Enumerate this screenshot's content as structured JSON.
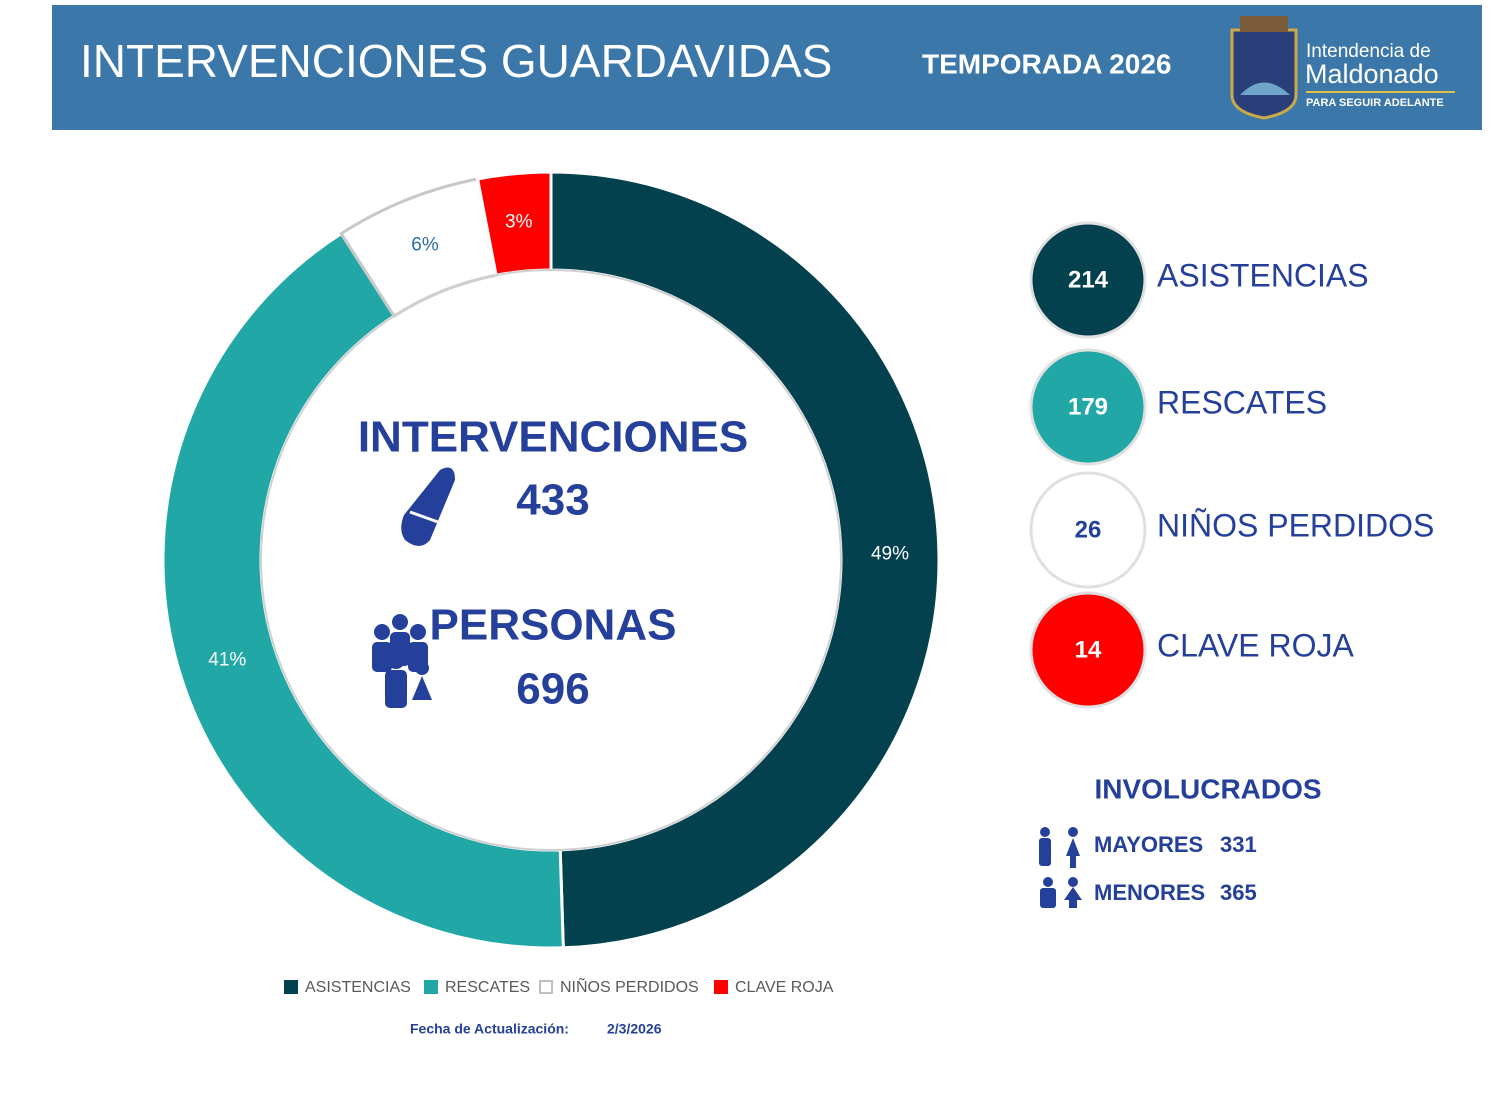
{
  "header": {
    "title": "INTERVENCIONES GUARDAVIDAS",
    "season": "TEMPORADA 2026",
    "logo": {
      "line1": "Intendencia de",
      "line2": "Maldonado",
      "tagline": "PARA SEGUIR ADELANTE"
    }
  },
  "chart_data": {
    "type": "pie",
    "donut": true,
    "categories": [
      "ASISTENCIAS",
      "RESCATES",
      "NIÑOS PERDIDOS",
      "CLAVE ROJA"
    ],
    "values": [
      49,
      41,
      6,
      3
    ],
    "value_labels": [
      "49%",
      "41%",
      "6%",
      "3%"
    ],
    "colors": [
      "#03414f",
      "#21a8a6",
      "#ffffff",
      "#ff0000"
    ],
    "label_colors": [
      "#ffffff",
      "#ffffff",
      "#2e6da4",
      "#ffffff"
    ],
    "legend": "bottom"
  },
  "center": {
    "interventions": {
      "label": "INTERVENCIONES",
      "value": 433
    },
    "people": {
      "label": "PERSONAS",
      "value": 696
    }
  },
  "summary": [
    {
      "count": 214,
      "label": "ASISTENCIAS",
      "color": "#03414f",
      "text_color": "#ffffff"
    },
    {
      "count": 179,
      "label": "RESCATES",
      "color": "#21a8a6",
      "text_color": "#ffffff"
    },
    {
      "count": 26,
      "label": "NIÑOS PERDIDOS",
      "color": "#ffffff",
      "text_color": "#25409a"
    },
    {
      "count": 14,
      "label": "CLAVE ROJA",
      "color": "#ff0000",
      "text_color": "#ffffff"
    }
  ],
  "involved": {
    "title": "INVOLUCRADOS",
    "rows": [
      {
        "label": "MAYORES",
        "value": 331
      },
      {
        "label": "MENORES",
        "value": 365
      }
    ]
  },
  "footer": {
    "label": "Fecha de Actualización:",
    "date": "2/3/2026"
  }
}
